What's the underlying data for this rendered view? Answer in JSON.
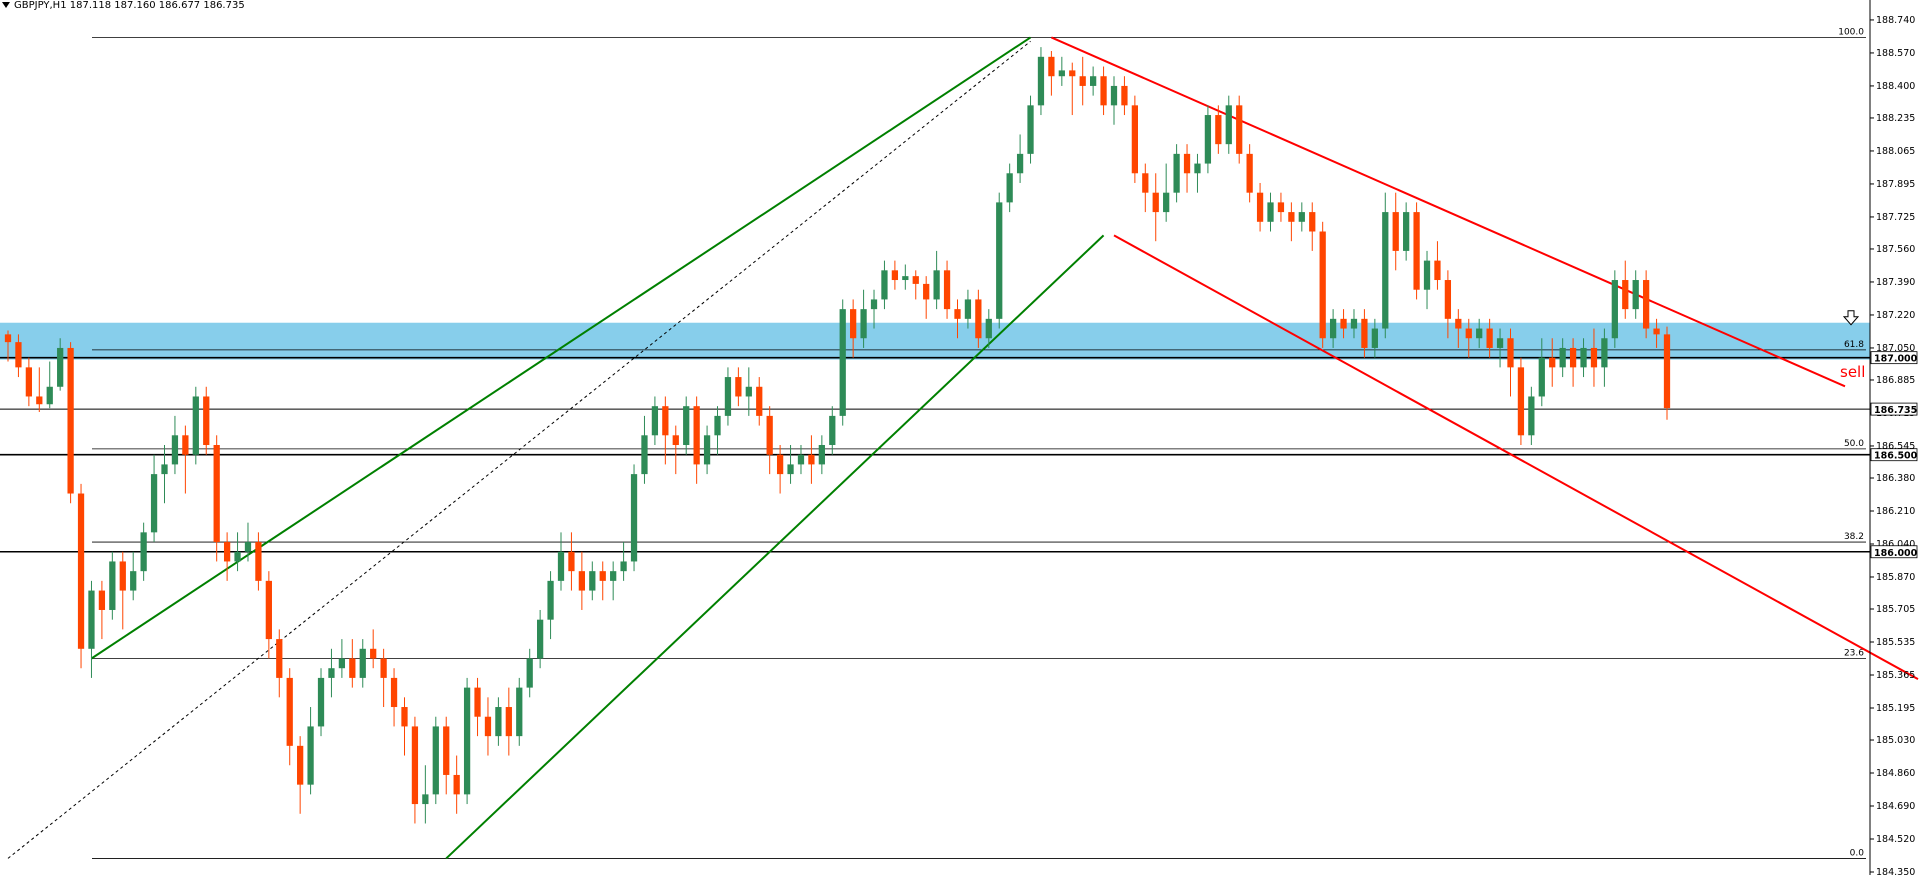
{
  "header": {
    "title": "GBPJPY,H1  187.118 187.160 186.677 186.735"
  },
  "chart_data": {
    "type": "candlestick",
    "symbol": "GBPJPY",
    "timeframe": "H1",
    "ohlc_header": {
      "open": 187.118,
      "high": 187.16,
      "low": 186.677,
      "close": 186.735
    },
    "ylim": [
      184.35,
      188.75
    ],
    "y_ticks": [
      "188.740",
      "188.570",
      "188.400",
      "188.235",
      "188.065",
      "187.895",
      "187.725",
      "187.560",
      "187.390",
      "187.220",
      "187.050",
      "186.885",
      "186.715",
      "186.545",
      "186.380",
      "186.210",
      "186.040",
      "185.870",
      "185.705",
      "185.535",
      "185.365",
      "185.195",
      "185.030",
      "184.860",
      "184.690",
      "184.520",
      "184.350"
    ],
    "price_labels": [
      {
        "text": "187.000",
        "value": 187.0
      },
      {
        "text": "186.735",
        "value": 186.735
      },
      {
        "text": "186.500",
        "value": 186.5
      },
      {
        "text": "186.000",
        "value": 186.0
      }
    ],
    "horizontal_lines": [
      187.0,
      186.5,
      186.0,
      186.735
    ],
    "fibonacci": {
      "levels": [
        {
          "label": "100.0",
          "value": 188.65
        },
        {
          "label": "61.8",
          "value": 187.04
        },
        {
          "label": "50.0",
          "value": 186.53
        },
        {
          "label": "38.2",
          "value": 186.05
        },
        {
          "label": "23.6",
          "value": 185.45
        },
        {
          "label": "0.0",
          "value": 184.42
        }
      ]
    },
    "zone": {
      "top": 187.18,
      "bottom": 186.99,
      "color": "#87CEEB"
    },
    "annotation": {
      "text": "sell",
      "color": "#FF0000",
      "arrow": "down-arrow-icon"
    },
    "colors": {
      "bull": "#2E8B57",
      "bear": "#FF4500",
      "up_channel": "#008000",
      "down_channel": "#FF0000",
      "background": "#FFFFFF"
    },
    "candles": [
      [
        187.12,
        187.08,
        187.14,
        186.98
      ],
      [
        187.08,
        186.95,
        187.12,
        186.9
      ],
      [
        186.95,
        186.8,
        187.0,
        186.75
      ],
      [
        186.8,
        186.76,
        186.95,
        186.72
      ],
      [
        186.76,
        186.85,
        186.98,
        186.74
      ],
      [
        186.85,
        187.05,
        187.1,
        186.83
      ],
      [
        187.05,
        186.3,
        187.08,
        186.25
      ],
      [
        186.3,
        185.5,
        186.35,
        185.4
      ],
      [
        185.5,
        185.8,
        185.85,
        185.35
      ],
      [
        185.8,
        185.7,
        185.85,
        185.55
      ],
      [
        185.7,
        185.95,
        186.0,
        185.65
      ],
      [
        185.95,
        185.8,
        186.0,
        185.6
      ],
      [
        185.8,
        185.9,
        186.0,
        185.75
      ],
      [
        185.9,
        186.1,
        186.15,
        185.85
      ],
      [
        186.1,
        186.4,
        186.5,
        186.05
      ],
      [
        186.4,
        186.45,
        186.55,
        186.25
      ],
      [
        186.45,
        186.6,
        186.7,
        186.4
      ],
      [
        186.6,
        186.5,
        186.65,
        186.3
      ],
      [
        186.5,
        186.8,
        186.85,
        186.45
      ],
      [
        186.8,
        186.55,
        186.85,
        186.5
      ],
      [
        186.55,
        186.05,
        186.6,
        185.95
      ],
      [
        186.05,
        185.95,
        186.1,
        185.85
      ],
      [
        185.95,
        186.0,
        186.1,
        185.9
      ],
      [
        186.0,
        186.05,
        186.15,
        185.95
      ],
      [
        186.05,
        185.85,
        186.1,
        185.8
      ],
      [
        185.85,
        185.55,
        185.9,
        185.45
      ],
      [
        185.55,
        185.35,
        185.6,
        185.25
      ],
      [
        185.35,
        185.0,
        185.4,
        184.9
      ],
      [
        185.0,
        184.8,
        185.05,
        184.65
      ],
      [
        184.8,
        185.1,
        185.2,
        184.75
      ],
      [
        185.1,
        185.35,
        185.4,
        185.05
      ],
      [
        185.35,
        185.4,
        185.5,
        185.25
      ],
      [
        185.4,
        185.45,
        185.55,
        185.35
      ],
      [
        185.45,
        185.35,
        185.55,
        185.3
      ],
      [
        185.35,
        185.5,
        185.55,
        185.3
      ],
      [
        185.5,
        185.45,
        185.6,
        185.4
      ],
      [
        185.45,
        185.35,
        185.5,
        185.2
      ],
      [
        185.35,
        185.2,
        185.4,
        185.1
      ],
      [
        185.2,
        185.1,
        185.25,
        184.95
      ],
      [
        185.1,
        184.7,
        185.15,
        184.6
      ],
      [
        184.7,
        184.75,
        184.9,
        184.6
      ],
      [
        184.75,
        185.1,
        185.15,
        184.7
      ],
      [
        185.1,
        184.85,
        185.15,
        184.75
      ],
      [
        184.85,
        184.75,
        184.95,
        184.65
      ],
      [
        184.75,
        185.3,
        185.35,
        184.7
      ],
      [
        185.3,
        185.15,
        185.35,
        185.05
      ],
      [
        185.15,
        185.05,
        185.25,
        184.95
      ],
      [
        185.05,
        185.2,
        185.25,
        185.0
      ],
      [
        185.2,
        185.05,
        185.3,
        184.95
      ],
      [
        185.05,
        185.3,
        185.35,
        185.0
      ],
      [
        185.3,
        185.45,
        185.5,
        185.25
      ],
      [
        185.45,
        185.65,
        185.7,
        185.4
      ],
      [
        185.65,
        185.85,
        185.9,
        185.55
      ],
      [
        185.85,
        186.0,
        186.1,
        185.8
      ],
      [
        186.0,
        185.9,
        186.1,
        185.8
      ],
      [
        185.9,
        185.8,
        186.0,
        185.7
      ],
      [
        185.8,
        185.9,
        185.95,
        185.75
      ],
      [
        185.9,
        185.85,
        185.95,
        185.75
      ],
      [
        185.85,
        185.9,
        185.95,
        185.75
      ],
      [
        185.9,
        185.95,
        186.05,
        185.85
      ],
      [
        185.95,
        186.4,
        186.45,
        185.9
      ],
      [
        186.4,
        186.6,
        186.7,
        186.35
      ],
      [
        186.6,
        186.75,
        186.8,
        186.55
      ],
      [
        186.75,
        186.6,
        186.8,
        186.45
      ],
      [
        186.6,
        186.55,
        186.65,
        186.4
      ],
      [
        186.55,
        186.75,
        186.8,
        186.5
      ],
      [
        186.75,
        186.45,
        186.8,
        186.35
      ],
      [
        186.45,
        186.6,
        186.65,
        186.4
      ],
      [
        186.6,
        186.7,
        186.75,
        186.5
      ],
      [
        186.7,
        186.9,
        186.95,
        186.65
      ],
      [
        186.9,
        186.8,
        186.95,
        186.75
      ],
      [
        186.8,
        186.85,
        186.95,
        186.7
      ],
      [
        186.85,
        186.7,
        186.9,
        186.65
      ],
      [
        186.7,
        186.5,
        186.75,
        186.4
      ],
      [
        186.5,
        186.4,
        186.55,
        186.3
      ],
      [
        186.4,
        186.45,
        186.55,
        186.35
      ],
      [
        186.45,
        186.5,
        186.55,
        186.4
      ],
      [
        186.5,
        186.45,
        186.6,
        186.35
      ],
      [
        186.45,
        186.55,
        186.6,
        186.4
      ],
      [
        186.55,
        186.7,
        186.75,
        186.5
      ],
      [
        186.7,
        187.25,
        187.3,
        186.65
      ],
      [
        187.25,
        187.1,
        187.3,
        187.0
      ],
      [
        187.1,
        187.25,
        187.35,
        187.05
      ],
      [
        187.25,
        187.3,
        187.35,
        187.15
      ],
      [
        187.3,
        187.45,
        187.5,
        187.25
      ],
      [
        187.45,
        187.4,
        187.5,
        187.35
      ],
      [
        187.4,
        187.42,
        187.48,
        187.35
      ],
      [
        187.42,
        187.38,
        187.45,
        187.3
      ],
      [
        187.38,
        187.3,
        187.42,
        187.2
      ],
      [
        187.3,
        187.45,
        187.55,
        187.25
      ],
      [
        187.45,
        187.25,
        187.5,
        187.2
      ],
      [
        187.25,
        187.2,
        187.3,
        187.1
      ],
      [
        187.2,
        187.3,
        187.35,
        187.15
      ],
      [
        187.3,
        187.1,
        187.35,
        187.05
      ],
      [
        187.1,
        187.2,
        187.25,
        187.05
      ],
      [
        187.2,
        187.8,
        187.85,
        187.15
      ],
      [
        187.8,
        187.95,
        188.0,
        187.75
      ],
      [
        187.95,
        188.05,
        188.15,
        187.9
      ],
      [
        188.05,
        188.3,
        188.35,
        188.0
      ],
      [
        188.3,
        188.55,
        188.6,
        188.25
      ],
      [
        188.55,
        188.45,
        188.58,
        188.35
      ],
      [
        188.45,
        188.48,
        188.55,
        188.4
      ],
      [
        188.48,
        188.45,
        188.52,
        188.25
      ],
      [
        188.45,
        188.4,
        188.55,
        188.3
      ],
      [
        188.4,
        188.45,
        188.5,
        188.35
      ],
      [
        188.45,
        188.3,
        188.5,
        188.25
      ],
      [
        188.3,
        188.4,
        188.45,
        188.2
      ],
      [
        188.4,
        188.3,
        188.45,
        188.25
      ],
      [
        188.3,
        187.95,
        188.35,
        187.9
      ],
      [
        187.95,
        187.85,
        188.0,
        187.75
      ],
      [
        187.85,
        187.75,
        187.95,
        187.6
      ],
      [
        187.75,
        187.85,
        188.0,
        187.7
      ],
      [
        187.85,
        188.05,
        188.1,
        187.8
      ],
      [
        188.05,
        187.95,
        188.1,
        187.85
      ],
      [
        187.95,
        188.0,
        188.05,
        187.85
      ],
      [
        188.0,
        188.25,
        188.3,
        187.95
      ],
      [
        188.25,
        188.1,
        188.3,
        188.05
      ],
      [
        188.1,
        188.3,
        188.35,
        188.05
      ],
      [
        188.3,
        188.05,
        188.35,
        188.0
      ],
      [
        188.05,
        187.85,
        188.1,
        187.8
      ],
      [
        187.85,
        187.7,
        187.9,
        187.65
      ],
      [
        187.7,
        187.8,
        187.85,
        187.65
      ],
      [
        187.8,
        187.75,
        187.85,
        187.7
      ],
      [
        187.75,
        187.7,
        187.8,
        187.6
      ],
      [
        187.7,
        187.75,
        187.8,
        187.65
      ],
      [
        187.75,
        187.65,
        187.8,
        187.55
      ],
      [
        187.65,
        187.1,
        187.7,
        187.05
      ],
      [
        187.1,
        187.2,
        187.25,
        187.05
      ],
      [
        187.2,
        187.15,
        187.25,
        187.1
      ],
      [
        187.15,
        187.2,
        187.25,
        187.1
      ],
      [
        187.2,
        187.05,
        187.25,
        187.0
      ],
      [
        187.05,
        187.15,
        187.2,
        187.0
      ],
      [
        187.15,
        187.75,
        187.85,
        187.1
      ],
      [
        187.75,
        187.55,
        187.85,
        187.45
      ],
      [
        187.55,
        187.75,
        187.8,
        187.5
      ],
      [
        187.75,
        187.35,
        187.8,
        187.3
      ],
      [
        187.35,
        187.5,
        187.55,
        187.25
      ],
      [
        187.5,
        187.4,
        187.6,
        187.35
      ],
      [
        187.4,
        187.2,
        187.45,
        187.1
      ],
      [
        187.2,
        187.15,
        187.25,
        187.05
      ],
      [
        187.15,
        187.1,
        187.2,
        187.0
      ],
      [
        187.1,
        187.15,
        187.2,
        187.05
      ],
      [
        187.15,
        187.05,
        187.2,
        187.0
      ],
      [
        187.05,
        187.1,
        187.15,
        186.95
      ],
      [
        187.1,
        186.95,
        187.15,
        186.8
      ],
      [
        186.95,
        186.6,
        187.0,
        186.55
      ],
      [
        186.6,
        186.8,
        186.85,
        186.55
      ],
      [
        186.8,
        187.0,
        187.1,
        186.75
      ],
      [
        187.0,
        186.95,
        187.1,
        186.85
      ],
      [
        186.95,
        187.05,
        187.1,
        186.9
      ],
      [
        187.05,
        186.95,
        187.1,
        186.85
      ],
      [
        186.95,
        187.05,
        187.1,
        186.9
      ],
      [
        187.05,
        186.95,
        187.15,
        186.85
      ],
      [
        186.95,
        187.1,
        187.15,
        186.85
      ],
      [
        187.1,
        187.4,
        187.45,
        187.05
      ],
      [
        187.4,
        187.25,
        187.5,
        187.2
      ],
      [
        187.25,
        187.4,
        187.45,
        187.2
      ],
      [
        187.4,
        187.15,
        187.45,
        187.1
      ],
      [
        187.15,
        187.12,
        187.2,
        187.05
      ],
      [
        187.12,
        186.74,
        187.16,
        186.68
      ]
    ],
    "up_channel": {
      "top_line": [
        [
          8,
          185.45
        ],
        [
          98,
          188.65
        ]
      ],
      "bottom_line": [
        [
          42,
          184.42
        ],
        [
          105,
          187.63
        ]
      ],
      "dashed": [
        [
          0,
          184.42
        ],
        [
          98,
          188.63
        ]
      ]
    },
    "down_channel": {
      "top_line": [
        [
          100,
          188.65
        ],
        [
          166,
          187.09
        ]
      ],
      "bottom_line": [
        [
          106,
          187.63
        ],
        [
          166,
          185.85
        ]
      ]
    }
  }
}
